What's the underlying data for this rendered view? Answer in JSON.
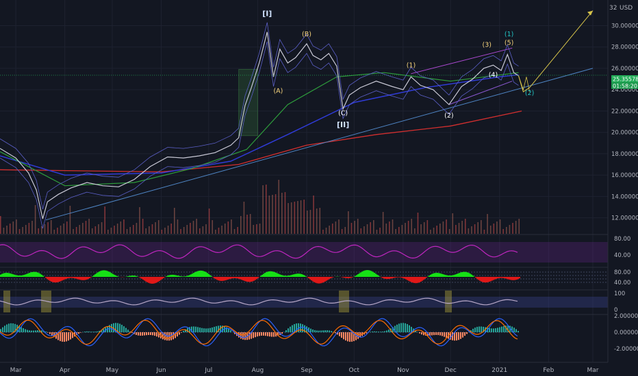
{
  "currency": "USD",
  "price_tag": {
    "value": "25.35578",
    "timer": "01:58:20"
  },
  "chart_data": {
    "type": "line",
    "ylim": [
      10.5,
      32.4
    ],
    "y_ticks": [
      12,
      14,
      16,
      18,
      20,
      22,
      24,
      26,
      28,
      30
    ],
    "y_tick_labels": [
      "12.00000",
      "14.00000",
      "16.00000",
      "18.00000",
      "20.00000",
      "22.00000",
      "24.00000",
      "26.00000",
      "28.00000",
      "30.00000"
    ],
    "top_partial_label": "32",
    "x_labels": [
      "Mar",
      "Apr",
      "May",
      "Jun",
      "Jul",
      "Aug",
      "Sep",
      "Oct",
      "Nov",
      "Dec",
      "2021",
      "Feb",
      "Mar"
    ],
    "x_dates": [
      "2020-03-01",
      "2020-04-01",
      "2020-05-01",
      "2020-06-01",
      "2020-07-01",
      "2020-08-01",
      "2020-09-01",
      "2020-10-01",
      "2020-11-01",
      "2020-12-01",
      "2021-01-01",
      "2021-02-01",
      "2021-03-01"
    ],
    "price_points": [
      [
        "2020-02-20",
        18.5
      ],
      [
        "2020-03-01",
        17.6
      ],
      [
        "2020-03-09",
        16.2
      ],
      [
        "2020-03-14",
        14.6
      ],
      [
        "2020-03-18",
        11.9
      ],
      [
        "2020-03-21",
        13.5
      ],
      [
        "2020-03-28",
        14.2
      ],
      [
        "2020-04-05",
        14.8
      ],
      [
        "2020-04-15",
        15.3
      ],
      [
        "2020-04-25",
        15.0
      ],
      [
        "2020-05-05",
        14.9
      ],
      [
        "2020-05-15",
        15.6
      ],
      [
        "2020-05-25",
        16.8
      ],
      [
        "2020-06-05",
        17.7
      ],
      [
        "2020-06-15",
        17.6
      ],
      [
        "2020-06-25",
        17.8
      ],
      [
        "2020-07-05",
        18.1
      ],
      [
        "2020-07-15",
        18.8
      ],
      [
        "2020-07-20",
        19.5
      ],
      [
        "2020-07-24",
        22.5
      ],
      [
        "2020-07-28",
        24.2
      ],
      [
        "2020-08-02",
        26.5
      ],
      [
        "2020-08-07",
        29.4
      ],
      [
        "2020-08-11",
        25.2
      ],
      [
        "2020-08-15",
        27.8
      ],
      [
        "2020-08-20",
        26.5
      ],
      [
        "2020-08-25",
        27.0
      ],
      [
        "2020-09-01",
        28.3
      ],
      [
        "2020-09-05",
        27.2
      ],
      [
        "2020-09-10",
        26.8
      ],
      [
        "2020-09-15",
        27.4
      ],
      [
        "2020-09-20",
        26.2
      ],
      [
        "2020-09-24",
        22.2
      ],
      [
        "2020-09-28",
        23.5
      ],
      [
        "2020-10-05",
        24.2
      ],
      [
        "2020-10-15",
        24.8
      ],
      [
        "2020-10-25",
        24.3
      ],
      [
        "2020-11-01",
        24.0
      ],
      [
        "2020-11-06",
        25.2
      ],
      [
        "2020-11-12",
        24.4
      ],
      [
        "2020-11-20",
        24.0
      ],
      [
        "2020-11-30",
        22.6
      ],
      [
        "2020-12-08",
        24.3
      ],
      [
        "2020-12-15",
        25.0
      ],
      [
        "2020-12-22",
        26.0
      ],
      [
        "2020-12-28",
        26.3
      ],
      [
        "2021-01-02",
        25.8
      ],
      [
        "2021-01-06",
        27.3
      ],
      [
        "2021-01-10",
        25.6
      ],
      [
        "2021-01-13",
        25.3
      ]
    ],
    "projection": [
      [
        "2021-01-13",
        25.3
      ],
      [
        "2021-01-16",
        23.8
      ],
      [
        "2021-01-20",
        24.2
      ],
      [
        "2021-03-01",
        31.4
      ]
    ],
    "projection_alt": [
      [
        "2021-01-13",
        25.3
      ],
      [
        "2021-01-16",
        24.0
      ],
      [
        "2021-01-18",
        25.2
      ],
      [
        "2021-01-20",
        23.8
      ]
    ],
    "trendline": [
      [
        "2020-03-20",
        11.8
      ],
      [
        "2021-03-01",
        26.0
      ]
    ],
    "channel_upper": [
      [
        "2020-11-06",
        25.5
      ],
      [
        "2021-01-09",
        27.9
      ]
    ],
    "channel_lower": [
      [
        "2020-11-30",
        22.6
      ],
      [
        "2021-01-09",
        24.8
      ]
    ],
    "ma_red": [
      [
        "2020-02-20",
        16.5
      ],
      [
        "2020-06-01",
        16.3
      ],
      [
        "2020-07-20",
        17.0
      ],
      [
        "2020-09-01",
        18.8
      ],
      [
        "2020-10-15",
        19.8
      ],
      [
        "2020-12-01",
        20.6
      ],
      [
        "2021-01-15",
        22.0
      ]
    ],
    "ma_blue": [
      [
        "2020-02-20",
        17.8
      ],
      [
        "2020-04-01",
        16.0
      ],
      [
        "2020-06-01",
        16.2
      ],
      [
        "2020-07-15",
        17.3
      ],
      [
        "2020-08-20",
        19.8
      ],
      [
        "2020-10-01",
        22.8
      ],
      [
        "2020-11-15",
        24.2
      ],
      [
        "2021-01-01",
        25.2
      ],
      [
        "2021-01-13",
        25.4
      ]
    ],
    "ma_green": [
      [
        "2020-02-20",
        18.2
      ],
      [
        "2020-04-01",
        15.0
      ],
      [
        "2020-05-15",
        15.3
      ],
      [
        "2020-06-20",
        16.6
      ],
      [
        "2020-07-25",
        18.4
      ],
      [
        "2020-08-20",
        22.6
      ],
      [
        "2020-09-20",
        25.2
      ],
      [
        "2020-10-20",
        25.6
      ],
      [
        "2020-12-01",
        24.8
      ],
      [
        "2021-01-13",
        25.6
      ]
    ],
    "wave_labels": [
      {
        "text": "[I]",
        "date": "2020-08-07",
        "y": 30.9,
        "color": "#d1e3ff",
        "bold": true
      },
      {
        "text": "(A)",
        "date": "2020-08-14",
        "y": 23.7,
        "color": "#f5d27b"
      },
      {
        "text": "(B)",
        "date": "2020-09-01",
        "y": 29.0,
        "color": "#f5d27b"
      },
      {
        "text": "(C)",
        "date": "2020-09-24",
        "y": 21.6,
        "color": "#ffffff"
      },
      {
        "text": "[II]",
        "date": "2020-09-24",
        "y": 20.5,
        "color": "#d1e3ff",
        "bold": true
      },
      {
        "text": "(1)",
        "date": "2020-11-06",
        "y": 26.1,
        "color": "#f5d27b"
      },
      {
        "text": "(2)",
        "date": "2020-11-30",
        "y": 21.4,
        "color": "#ffffff"
      },
      {
        "text": "(3)",
        "date": "2020-12-24",
        "y": 28.0,
        "color": "#f5d27b"
      },
      {
        "text": "(4)",
        "date": "2020-12-28",
        "y": 25.2,
        "color": "#ffffff"
      },
      {
        "text": "(5)",
        "date": "2021-01-07",
        "y": 28.2,
        "color": "#f5d27b"
      },
      {
        "text": "(1)",
        "date": "2021-01-07",
        "y": 29.0,
        "color": "#22c6c6"
      },
      {
        "text": "(2)",
        "date": "2021-01-20",
        "y": 23.5,
        "color": "#22c6c6"
      }
    ],
    "volume_note": "volume histogram in the lower area of the main pane",
    "indicators": [
      {
        "name": "rsi",
        "ticks": [
          "80.00",
          "40.00"
        ]
      },
      {
        "name": "histogram_oscillator",
        "ticks": [
          "80.00",
          "40.00"
        ]
      },
      {
        "name": "stochastic",
        "ticks": [
          "100",
          "0"
        ]
      },
      {
        "name": "macd",
        "ticks": [
          "2.00000",
          "0.00000",
          "-2.00000"
        ]
      }
    ]
  }
}
